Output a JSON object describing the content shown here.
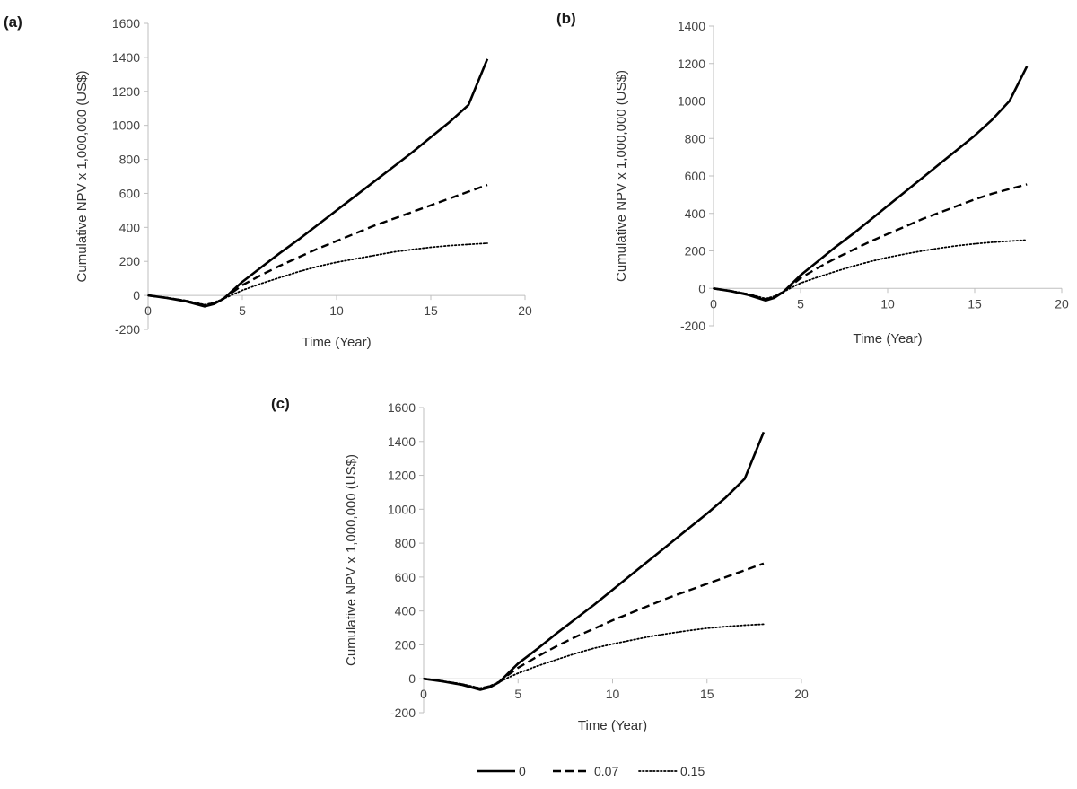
{
  "colors": {
    "line": "#000000",
    "axis": "#bfbfbf",
    "text": "#333333"
  },
  "legend": {
    "items": [
      {
        "label": "0",
        "dash": "solid"
      },
      {
        "label": "0.07",
        "dash": "dashed"
      },
      {
        "label": "0.15",
        "dash": "dotted"
      }
    ]
  },
  "chart_data": [
    {
      "type": "line",
      "panel_label": "(a)",
      "xlabel": "Time (Year)",
      "ylabel": "Cumulative NPV x 1,000,000 (US$)",
      "xlim": [
        0,
        20
      ],
      "ylim": [
        -200,
        1600
      ],
      "xticks": [
        "0",
        "5",
        "10",
        "15",
        "20"
      ],
      "yticks": [
        "-200",
        "0",
        "200",
        "400",
        "600",
        "800",
        "1000",
        "1200",
        "1400",
        "1600"
      ],
      "x": [
        0,
        1,
        2,
        3,
        3.5,
        4,
        4.5,
        5,
        6,
        7,
        8,
        9,
        10,
        11,
        12,
        13,
        14,
        15,
        16,
        17,
        18
      ],
      "series": [
        {
          "name": "0",
          "values": [
            0,
            -15,
            -35,
            -65,
            -50,
            -20,
            30,
            80,
            165,
            250,
            330,
            415,
            500,
            585,
            670,
            755,
            840,
            930,
            1020,
            1120,
            1390
          ]
        },
        {
          "name": "0.07",
          "values": [
            0,
            -14,
            -32,
            -58,
            -45,
            -18,
            20,
            60,
            120,
            175,
            225,
            275,
            320,
            365,
            410,
            450,
            490,
            530,
            570,
            610,
            650
          ]
        },
        {
          "name": "0.15",
          "values": [
            0,
            -13,
            -30,
            -55,
            -42,
            -20,
            5,
            30,
            70,
            105,
            140,
            170,
            195,
            215,
            235,
            255,
            270,
            283,
            293,
            300,
            307
          ]
        }
      ]
    },
    {
      "type": "line",
      "panel_label": "(b)",
      "xlabel": "Time (Year)",
      "ylabel": "Cumulative NPV x 1,000,000 (US$)",
      "xlim": [
        0,
        20
      ],
      "ylim": [
        -200,
        1400
      ],
      "xticks": [
        "0",
        "5",
        "10",
        "15",
        "20"
      ],
      "yticks": [
        "-200",
        "0",
        "200",
        "400",
        "600",
        "800",
        "1000",
        "1200",
        "1400"
      ],
      "x": [
        0,
        1,
        2,
        3,
        3.5,
        4,
        4.5,
        5,
        6,
        7,
        8,
        9,
        10,
        11,
        12,
        13,
        14,
        15,
        16,
        17,
        18
      ],
      "series": [
        {
          "name": "0",
          "values": [
            0,
            -15,
            -35,
            -65,
            -50,
            -20,
            25,
            70,
            145,
            220,
            290,
            365,
            440,
            515,
            590,
            665,
            740,
            815,
            900,
            1000,
            1185
          ]
        },
        {
          "name": "0.07",
          "values": [
            0,
            -14,
            -32,
            -58,
            -45,
            -18,
            18,
            55,
            110,
            160,
            205,
            250,
            290,
            330,
            370,
            405,
            440,
            475,
            505,
            530,
            555
          ]
        },
        {
          "name": "0.15",
          "values": [
            0,
            -13,
            -30,
            -55,
            -42,
            -20,
            5,
            28,
            60,
            90,
            118,
            143,
            165,
            183,
            200,
            215,
            228,
            238,
            246,
            252,
            258
          ]
        }
      ]
    },
    {
      "type": "line",
      "panel_label": "(c)",
      "xlabel": "Time (Year)",
      "ylabel": "Cumulative NPV x 1,000,000 (US$)",
      "xlim": [
        0,
        20
      ],
      "ylim": [
        -200,
        1600
      ],
      "xticks": [
        "0",
        "5",
        "10",
        "15",
        "20"
      ],
      "yticks": [
        "-200",
        "0",
        "200",
        "400",
        "600",
        "800",
        "1000",
        "1200",
        "1400",
        "1600"
      ],
      "x": [
        0,
        1,
        2,
        3,
        3.5,
        4,
        4.5,
        5,
        6,
        7,
        8,
        9,
        10,
        11,
        12,
        13,
        14,
        15,
        16,
        17,
        18
      ],
      "series": [
        {
          "name": "0",
          "values": [
            0,
            -15,
            -35,
            -65,
            -50,
            -20,
            35,
            90,
            175,
            265,
            350,
            435,
            525,
            615,
            705,
            795,
            885,
            975,
            1070,
            1180,
            1455
          ]
        },
        {
          "name": "0.07",
          "values": [
            0,
            -14,
            -32,
            -58,
            -45,
            -18,
            25,
            65,
            130,
            190,
            245,
            295,
            345,
            390,
            435,
            480,
            520,
            560,
            600,
            640,
            680
          ]
        },
        {
          "name": "0.15",
          "values": [
            0,
            -13,
            -30,
            -55,
            -42,
            -20,
            8,
            33,
            75,
            112,
            148,
            180,
            205,
            228,
            250,
            268,
            284,
            298,
            308,
            316,
            322
          ]
        }
      ]
    }
  ]
}
